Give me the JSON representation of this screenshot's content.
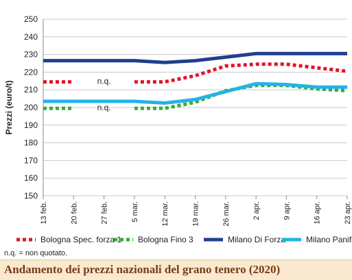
{
  "chart_data": {
    "type": "line",
    "title": "Andamento dei prezzi nazionali del grano tenero (2020)",
    "ylabel": "Prezzi (euro/t)",
    "xlabel": "",
    "ylim": [
      150,
      250
    ],
    "y_ticks": [
      150,
      160,
      170,
      180,
      190,
      200,
      210,
      220,
      230,
      240,
      250
    ],
    "grid": "horizontal",
    "legend_position": "bottom",
    "categories": [
      "13 feb.",
      "20 feb.",
      "27 feb.",
      "5 mar.",
      "12 mar.",
      "19 mar.",
      "26 mar.",
      "2 apr.",
      "9 apr.",
      "16 apr.",
      "23 apr."
    ],
    "series": [
      {
        "name": "Bologna Spec. forza 1",
        "color": "#e3132b",
        "style": "dotted",
        "values": [
          214.5,
          214.5,
          null,
          214.5,
          214.5,
          218,
          223.5,
          224.5,
          224.5,
          222.5,
          220.5
        ]
      },
      {
        "name": "Bologna Fino 3",
        "color": "#3aaa35",
        "style": "dotted",
        "values": [
          199.5,
          199.5,
          null,
          199.5,
          199.5,
          203,
          209.5,
          212.5,
          212.5,
          210.5,
          209.5
        ]
      },
      {
        "name": "Milano Di Forza",
        "color": "#1f3f8f",
        "style": "solid",
        "values": [
          226.5,
          226.5,
          226.5,
          226.5,
          225.5,
          226.5,
          228.5,
          230.5,
          230.5,
          230.5,
          230.5
        ]
      },
      {
        "name": "Milano Panificabile",
        "color": "#22b3e8",
        "style": "solid",
        "values": [
          203.5,
          203.5,
          203.5,
          203.5,
          202.5,
          204.5,
          209,
          213.5,
          213,
          211.5,
          211.5
        ]
      }
    ],
    "annotations": [
      {
        "text": "n.q.",
        "x": "27 feb.",
        "y": 215
      },
      {
        "text": "n.q.",
        "x": "27 feb.",
        "y": 200
      }
    ]
  },
  "footer": {
    "note": "n.q. = non quotato.",
    "title": "Andamento dei prezzi nazionali del grano tenero (2020)"
  }
}
